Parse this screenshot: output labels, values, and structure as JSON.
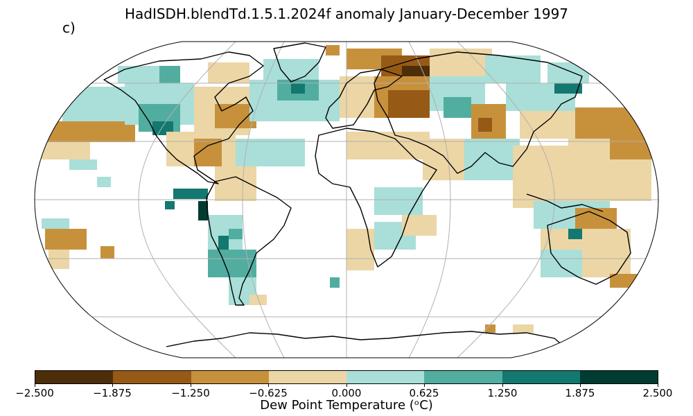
{
  "title": "HadISDH.blendTd.1.5.1.2024f anomaly January-December 1997",
  "panel_label": "c)",
  "colorbar": {
    "colors": [
      "#543005",
      "#8c510a",
      "#bf812d",
      "#dfc27d",
      "#f6e8c3",
      "#c7eae5",
      "#80cdc1",
      "#35978f",
      "#01665e",
      "#003c30"
    ],
    "bins": [
      "#4d2e0a",
      "#965a16",
      "#c7913c",
      "#ecd6a5",
      "#a9dfd8",
      "#52ada1",
      "#137870",
      "#003c31"
    ],
    "ticks": [
      "−2.500",
      "−1.875",
      "−1.250",
      "−0.625",
      "0.000",
      "0.625",
      "1.250",
      "1.875",
      "2.500"
    ],
    "label": "Dew Point Temperature (ᵒC)",
    "range": [
      -2.5,
      2.5
    ]
  },
  "map": {
    "projection": "Robinson",
    "ocean_color": "#ffffff",
    "gridline_color": "#b0b0b0",
    "coastline_color": "#000000"
  }
}
